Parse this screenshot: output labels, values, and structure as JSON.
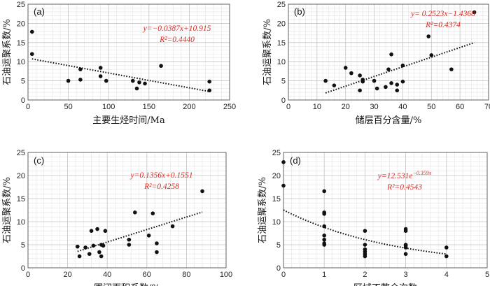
{
  "chart_data": [
    {
      "type": "scatter",
      "label": "(a)",
      "xlabel": "主要生烃时间/Ma",
      "ylabel": "石油运聚系数/%",
      "xlim": [
        0,
        250
      ],
      "xticks": [
        0,
        50,
        100,
        150,
        200,
        250
      ],
      "ylim": [
        0,
        25
      ],
      "yticks": [
        0,
        5,
        10,
        15,
        20,
        25
      ],
      "grid": true,
      "points": [
        [
          5,
          17.8
        ],
        [
          5,
          12.0
        ],
        [
          50,
          5.0
        ],
        [
          65,
          8.0
        ],
        [
          65,
          5.3
        ],
        [
          90,
          8.4
        ],
        [
          90,
          6.2
        ],
        [
          97,
          5.0
        ],
        [
          130,
          5.0
        ],
        [
          135,
          3.0
        ],
        [
          138,
          4.6
        ],
        [
          145,
          4.3
        ],
        [
          165,
          8.9
        ],
        [
          225,
          4.8
        ],
        [
          225,
          2.5
        ]
      ],
      "fit": {
        "kind": "linear",
        "a": -0.0387,
        "b": 10.915
      },
      "equation": "y=−0.0387x+10.915",
      "r2": "R²=0.4440"
    },
    {
      "type": "scatter",
      "label": "(b)",
      "xlabel": "储层百分含量/%",
      "ylabel": "石油运聚系数/%",
      "xlim": [
        0,
        70
      ],
      "xticks": [
        0,
        10,
        20,
        30,
        40,
        50,
        60,
        70
      ],
      "ylim": [
        0,
        25
      ],
      "yticks": [
        0,
        5,
        10,
        15,
        20,
        25
      ],
      "grid": true,
      "points": [
        [
          13,
          5.0
        ],
        [
          16,
          3.8
        ],
        [
          20,
          8.4
        ],
        [
          22,
          7.0
        ],
        [
          25,
          6.4
        ],
        [
          25,
          2.5
        ],
        [
          26,
          5.3
        ],
        [
          26,
          4.8
        ],
        [
          30,
          5.0
        ],
        [
          31,
          3.0
        ],
        [
          34,
          3.4
        ],
        [
          35,
          8.0
        ],
        [
          36,
          4.4
        ],
        [
          36,
          11.9
        ],
        [
          38,
          4.0
        ],
        [
          38,
          2.5
        ],
        [
          40,
          9.0
        ],
        [
          40,
          4.8
        ],
        [
          49,
          16.6
        ],
        [
          50,
          11.7
        ],
        [
          57,
          8.0
        ],
        [
          65,
          22.9
        ]
      ],
      "fit": {
        "kind": "linear",
        "a": 0.2523,
        "b": -1.4368
      },
      "equation": "y= 0.2523x−1.4368",
      "r2": "R²=0.4374"
    },
    {
      "type": "scatter",
      "label": "(c)",
      "xlabel": "圈闭面积系数/%",
      "ylabel": "石油运聚系数/%",
      "xlim": [
        0,
        100
      ],
      "xticks": [
        0,
        20,
        40,
        60,
        80,
        100
      ],
      "ylim": [
        0,
        25
      ],
      "yticks": [
        0,
        5,
        10,
        15,
        20,
        25
      ],
      "grid": true,
      "points": [
        [
          25,
          4.6
        ],
        [
          26,
          2.5
        ],
        [
          29,
          4.4
        ],
        [
          31,
          3.0
        ],
        [
          32,
          8.0
        ],
        [
          33,
          4.8
        ],
        [
          35,
          8.4
        ],
        [
          36,
          3.4
        ],
        [
          37,
          5.0
        ],
        [
          37,
          2.5
        ],
        [
          38,
          4.8
        ],
        [
          39,
          8.0
        ],
        [
          51,
          6.1
        ],
        [
          51,
          5.0
        ],
        [
          54,
          12.0
        ],
        [
          61,
          7.0
        ],
        [
          63,
          11.8
        ],
        [
          65,
          5.3
        ],
        [
          65,
          3.4
        ],
        [
          73,
          9.0
        ],
        [
          88,
          16.6
        ]
      ],
      "fit": {
        "kind": "linear",
        "a": 0.1356,
        "b": 0.1551
      },
      "equation": "y=0.1356x+0.1551",
      "r2": "R²=0.4258"
    },
    {
      "type": "scatter",
      "label": "(d)",
      "xlabel": "区域不整合次数",
      "ylabel": "石油运聚系数/%",
      "xlim": [
        0,
        5
      ],
      "xticks": [
        0,
        1,
        2,
        3,
        4,
        5
      ],
      "ylim": [
        0,
        25
      ],
      "yticks": [
        0,
        5,
        10,
        15,
        20,
        25
      ],
      "grid": true,
      "points": [
        [
          0,
          22.9
        ],
        [
          0,
          17.8
        ],
        [
          1,
          16.6
        ],
        [
          1,
          12.0
        ],
        [
          1,
          11.7
        ],
        [
          1,
          9.0
        ],
        [
          1,
          7.0
        ],
        [
          1,
          6.1
        ],
        [
          1,
          5.3
        ],
        [
          1,
          5.0
        ],
        [
          2,
          8.0
        ],
        [
          2,
          5.0
        ],
        [
          2,
          4.0
        ],
        [
          2,
          3.5
        ],
        [
          2,
          3.0
        ],
        [
          2,
          2.5
        ],
        [
          3,
          8.4
        ],
        [
          3,
          8.0
        ],
        [
          3,
          5.0
        ],
        [
          3,
          4.8
        ],
        [
          3,
          4.4
        ],
        [
          3,
          3.0
        ],
        [
          4,
          4.4
        ],
        [
          4,
          2.5
        ]
      ],
      "fit": {
        "kind": "exp",
        "a": 12.531,
        "k": -0.359
      },
      "equation": "y=12.531e",
      "equation_exp": "−0.359x",
      "r2": "R²=0.4543"
    }
  ]
}
